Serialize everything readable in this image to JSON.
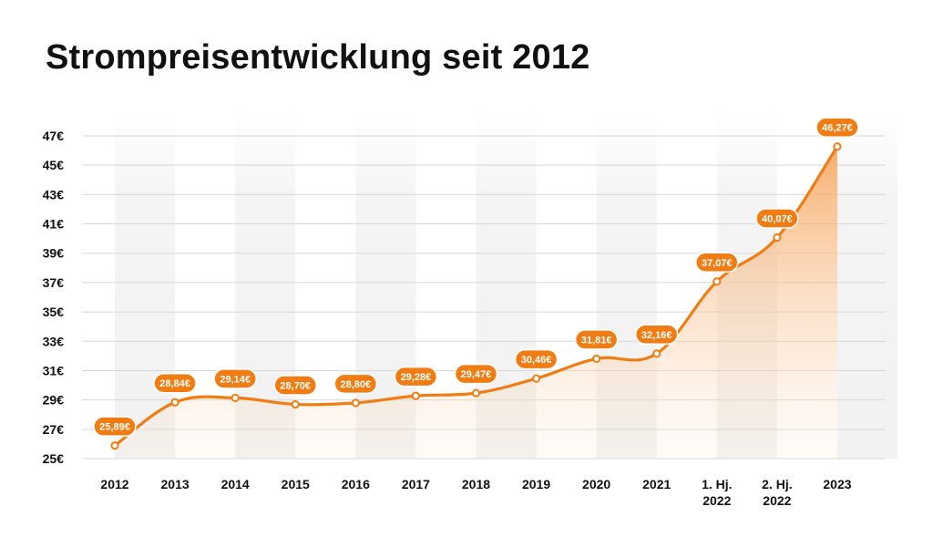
{
  "title": "Strompreisentwicklung seit 2012",
  "colors": {
    "line": "#f07d14",
    "label_bg": "#f07d14",
    "area_top": "#f5a560",
    "grid": "#d8d8d8",
    "band": "#f4f4f4"
  },
  "chart_data": {
    "type": "area",
    "categories": [
      "2012",
      "2013",
      "2014",
      "2015",
      "2016",
      "2017",
      "2018",
      "2019",
      "2020",
      "2021",
      "1. Hj. 2022",
      "2. Hj. 2022",
      "2023"
    ],
    "series": [
      {
        "values": [
          25.89,
          28.84,
          29.14,
          28.7,
          28.8,
          29.28,
          29.47,
          30.46,
          31.81,
          32.16,
          37.07,
          40.07,
          46.27
        ],
        "labels": [
          "25,89€",
          "28,84€",
          "29,14€",
          "28,70€",
          "28,80€",
          "29,28€",
          "29,47€",
          "30,46€",
          "31,81€",
          "32,16€",
          "37,07€",
          "40,07€",
          "46,27€"
        ]
      }
    ],
    "yticks": [
      25,
      27,
      29,
      31,
      33,
      35,
      37,
      39,
      41,
      43,
      45,
      47
    ],
    "ytick_labels": [
      "25€",
      "27€",
      "29€",
      "31€",
      "33€",
      "35€",
      "37€",
      "39€",
      "41€",
      "43€",
      "45€",
      "47€"
    ],
    "ylim": [
      25,
      47
    ],
    "xlabel": "",
    "ylabel": "",
    "grid": true,
    "legend": "none"
  }
}
